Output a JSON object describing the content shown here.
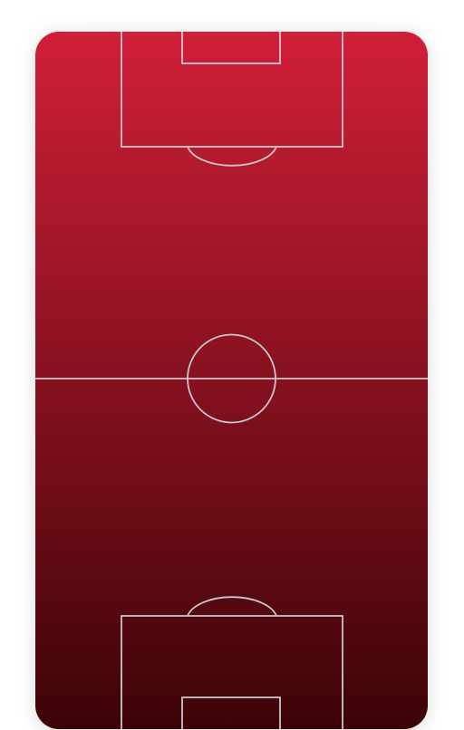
{
  "pitch": {
    "gradient_top": "#d01f38",
    "gradient_bottom": "#3c0306",
    "line_color": "#c9c6cf"
  }
}
